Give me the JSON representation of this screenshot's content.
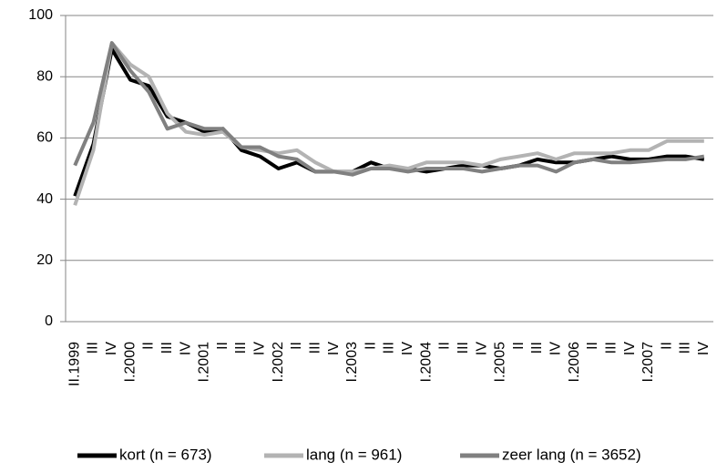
{
  "chart_data": {
    "type": "line",
    "categories": [
      "II.1999",
      "III",
      "IV",
      "I.2000",
      "II",
      "III",
      "IV",
      "I.2001",
      "II",
      "III",
      "IV",
      "I.2002",
      "II",
      "III",
      "IV",
      "I.2003",
      "II",
      "III",
      "IV",
      "I.2004",
      "II",
      "III",
      "IV",
      "I.2005",
      "II",
      "III",
      "IV",
      "I.2006",
      "II",
      "III",
      "IV",
      "I.2007",
      "II",
      "III",
      "IV"
    ],
    "series": [
      {
        "name": "kort (n = 673)",
        "color": "#000000",
        "values": [
          41,
          58,
          89,
          79,
          77,
          67,
          65,
          62,
          63,
          56,
          54,
          50,
          52,
          49,
          49,
          49,
          52,
          50,
          50,
          49,
          50,
          51,
          51,
          50,
          51,
          53,
          52,
          52,
          53,
          54,
          53,
          53,
          54,
          54,
          53
        ]
      },
      {
        "name": "lang (n = 961)",
        "color": "#b3b3b3",
        "values": [
          38,
          56,
          91,
          84,
          80,
          68,
          62,
          61,
          62,
          57,
          56,
          55,
          56,
          52,
          49,
          49,
          50,
          51,
          50,
          52,
          52,
          52,
          51,
          53,
          54,
          55,
          53,
          55,
          55,
          55,
          56,
          56,
          59,
          59,
          59
        ]
      },
      {
        "name": "zeer lang (n = 3652)",
        "color": "#808080",
        "values": [
          51,
          65,
          91,
          82,
          75,
          63,
          65,
          63,
          63,
          57,
          57,
          54,
          53,
          49,
          49,
          48,
          50,
          50,
          49,
          50,
          50,
          50,
          49,
          50,
          51,
          51,
          49,
          52,
          53,
          52,
          52,
          52.5,
          53,
          53,
          54
        ]
      }
    ],
    "ylim": [
      0,
      100
    ],
    "yticks": [
      0,
      20,
      40,
      60,
      80,
      100
    ],
    "grid": true,
    "legend": "bottom"
  }
}
